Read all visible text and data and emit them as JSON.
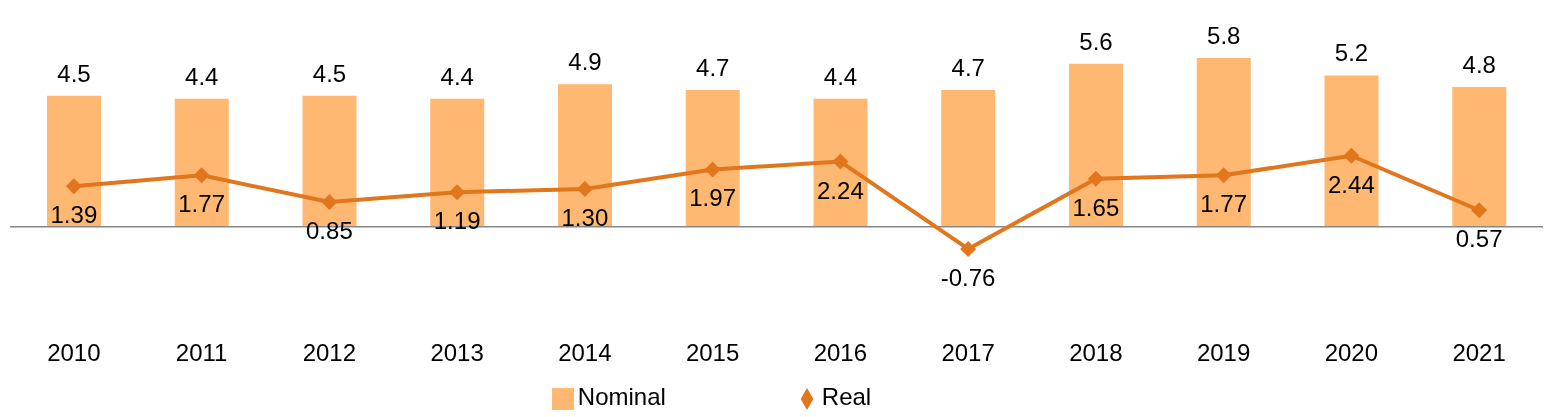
{
  "chart_data": {
    "type": "bar",
    "categories": [
      "2010",
      "2011",
      "2012",
      "2013",
      "2014",
      "2015",
      "2016",
      "2017",
      "2018",
      "2019",
      "2020",
      "2021"
    ],
    "series": [
      {
        "name": "Nominal",
        "color": "#ffb872",
        "values": [
          4.5,
          4.4,
          4.5,
          4.4,
          4.9,
          4.7,
          4.4,
          4.7,
          5.6,
          5.8,
          5.2,
          4.8
        ]
      },
      {
        "name": "Real",
        "type": "line",
        "color": "#e2761c",
        "values": [
          1.39,
          1.77,
          0.85,
          1.19,
          1.3,
          1.97,
          2.24,
          -0.76,
          1.65,
          1.77,
          2.44,
          0.57
        ],
        "value_labels": [
          "1.39",
          "1.77",
          "0.85",
          "1.19",
          "1.30",
          "1.97",
          "2.24",
          "-0.76",
          "1.65",
          "1.77",
          "2.44",
          "0.57"
        ]
      }
    ],
    "data_labels": true,
    "legend": "bottom",
    "marker": "diamond",
    "line_style": "solid"
  }
}
